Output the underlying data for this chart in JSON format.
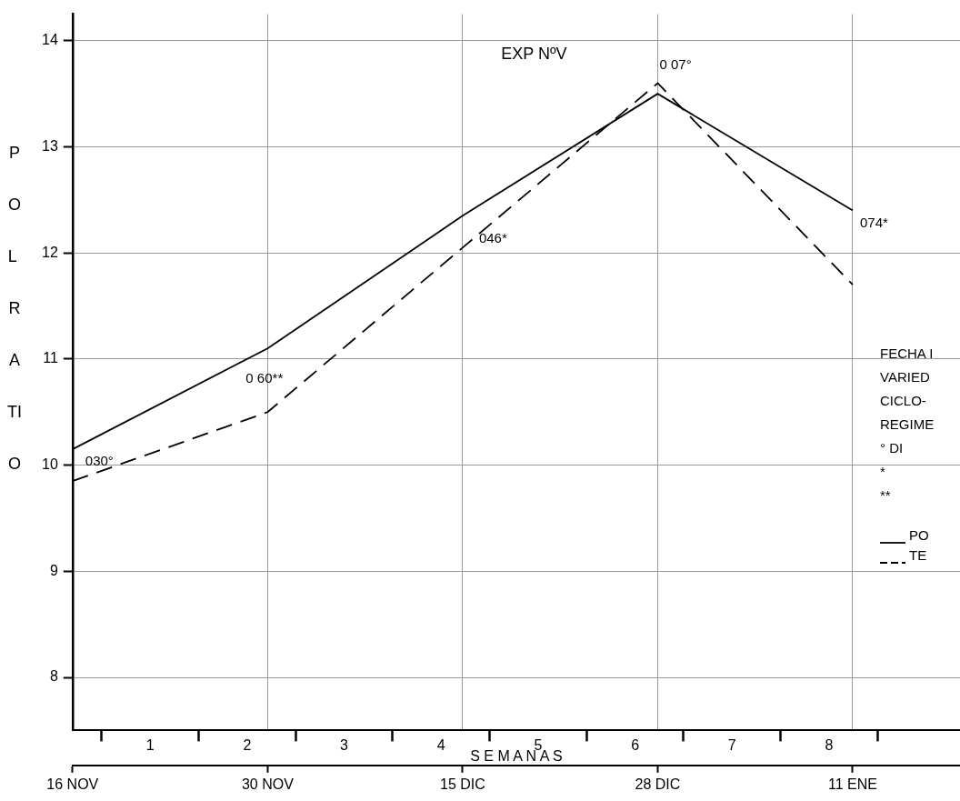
{
  "chart_data": {
    "type": "line",
    "title": "EXP NºV",
    "ylabel": "POL RATIO",
    "x2label": "S E M A N A S",
    "categories": [
      "16 NOV",
      "30 NOV",
      "15 DIC",
      "28 DIC",
      "11 ENE"
    ],
    "x2lim": [
      0.2,
      9.35
    ],
    "x2ticks": [
      {
        "value": 0.5,
        "label": null
      },
      1,
      {
        "value": 1.5,
        "label": null
      },
      2,
      {
        "value": 2.5,
        "label": null
      },
      3,
      {
        "value": 3.5,
        "label": null
      },
      4,
      {
        "value": 4.5,
        "label": null
      },
      5,
      {
        "value": 5.5,
        "label": null
      },
      6,
      {
        "value": 6.5,
        "label": null
      },
      7,
      {
        "value": 7.5,
        "label": null
      },
      8,
      {
        "value": 8.5,
        "label": null
      }
    ],
    "ylim": [
      7.5,
      14.25
    ],
    "yticks": [
      8,
      9,
      10,
      11,
      12,
      13,
      14
    ],
    "series": [
      {
        "name": "PO",
        "color": "#000000",
        "line_style": "solid",
        "values": [
          10.15,
          11.1,
          12.35,
          13.5,
          12.4
        ]
      },
      {
        "name": "TE",
        "color": "#000000",
        "line_style": "dashed",
        "values": [
          9.85,
          10.5,
          12.05,
          13.6,
          11.7
        ]
      }
    ],
    "annotations": [
      {
        "text": "030°",
        "x": "16 NOV",
        "y": 10.15
      },
      {
        "text": "0 60**",
        "x": "30 NOV",
        "y": 10.5
      },
      {
        "text": "046*",
        "x": "15 DIC",
        "y": 12.05
      },
      {
        "text": "0 07°",
        "x": "28 DIC",
        "y": 13.6
      },
      {
        "text": "074*",
        "x": "11 ENE",
        "y": 12.4
      },
      "FECHA I",
      "VARIED",
      "CICLO-",
      "REGIME",
      "° DI",
      "*",
      "**"
    ],
    "grid": true,
    "legend": "right",
    "marker": "none"
  }
}
